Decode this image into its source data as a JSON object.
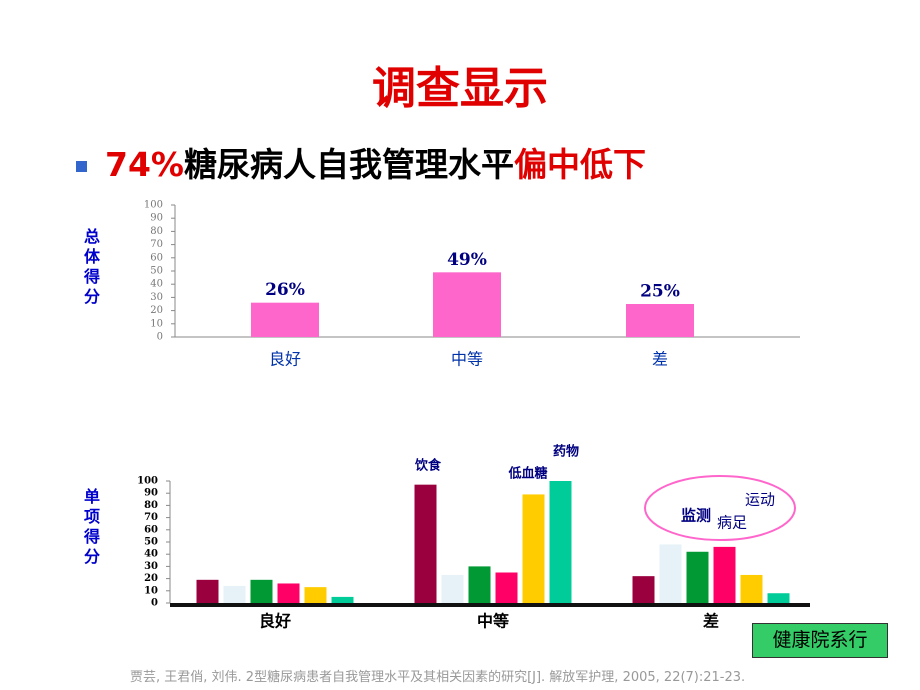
{
  "header": {
    "title": "调查显示"
  },
  "bullet": [
    "74%",
    "糖尿病人自我管理水平",
    "偏中低下"
  ],
  "chart_data": [
    {
      "type": "bar",
      "y_label": "总体得分",
      "categories": [
        "良好",
        "中等",
        "差"
      ],
      "values": [
        26,
        49,
        25
      ],
      "value_labels": [
        "26%",
        "49%",
        "25%"
      ],
      "color": "#ff66cc",
      "ylim": [
        0,
        100
      ],
      "yticks": [
        0,
        10,
        20,
        30,
        40,
        50,
        60,
        70,
        80,
        90,
        100
      ]
    },
    {
      "type": "grouped-bar",
      "y_label": "单项得分",
      "categories": [
        "良好",
        "中等",
        "差"
      ],
      "series": [
        {
          "color": "#99003d",
          "values": [
            19,
            97,
            22
          ]
        },
        {
          "color": "#e6f2f7",
          "values": [
            14,
            23,
            48
          ]
        },
        {
          "color": "#009933",
          "values": [
            19,
            30,
            42
          ]
        },
        {
          "color": "#ff0066",
          "values": [
            16,
            25,
            46
          ]
        },
        {
          "color": "#ffcc00",
          "values": [
            13,
            89,
            23
          ]
        },
        {
          "color": "#00cc99",
          "values": [
            5,
            100,
            8
          ]
        }
      ],
      "annotations": [
        "饮食",
        "低血糖",
        "药物",
        "监测",
        "病足",
        "运动"
      ],
      "ylim": [
        0,
        100
      ],
      "yticks": [
        0,
        10,
        20,
        30,
        40,
        50,
        60,
        70,
        80,
        90,
        100
      ]
    }
  ],
  "footer": {
    "citation": "贾芸, 王君俏, 刘伟. 2型糖尿病患者自我管理水平及其相关因素的研究[J]. 解放军护理, 2005, 22(7):21-23.",
    "badge": "健康院系行"
  }
}
